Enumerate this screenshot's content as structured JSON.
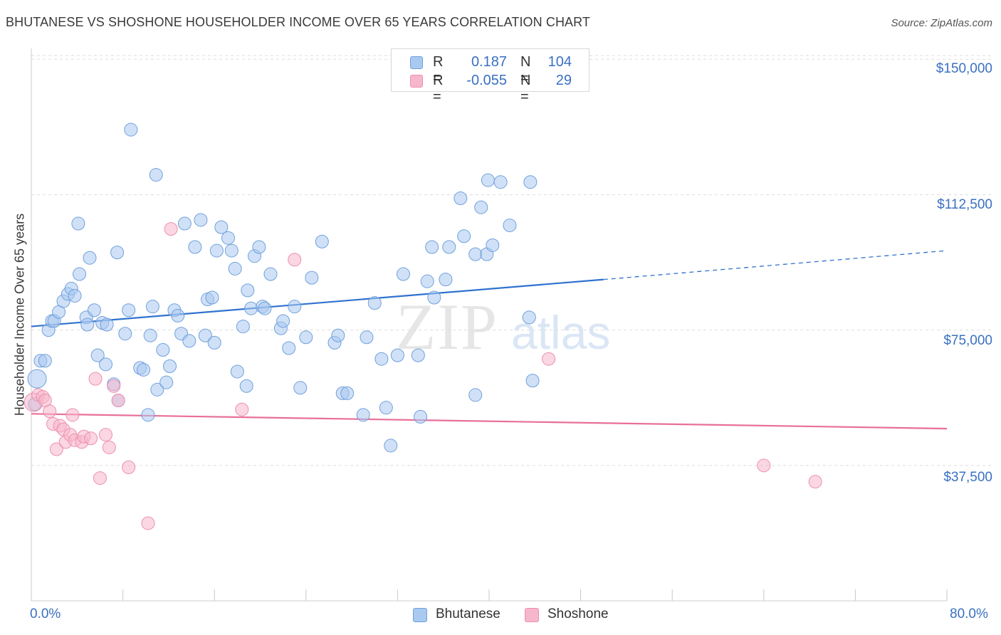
{
  "header": {
    "title": "BHUTANESE VS SHOSHONE HOUSEHOLDER INCOME OVER 65 YEARS CORRELATION CHART",
    "source": "Source: ZipAtlas.com"
  },
  "watermark": {
    "zip": "ZIP",
    "atlas": "atlas"
  },
  "legend_top": {
    "rows": [
      {
        "r_label": "R =",
        "r_value": "0.187",
        "n_label": "N =",
        "n_value": "104"
      },
      {
        "r_label": "R =",
        "r_value": "-0.055",
        "n_label": "N =",
        "n_value": "29"
      }
    ]
  },
  "legend_bottom": {
    "items": [
      "Bhutanese",
      "Shoshone"
    ]
  },
  "colors": {
    "blue_fill": "#a9c9f0",
    "blue_stroke": "#6fa0dc",
    "blue_line": "#2f72cf",
    "pink_fill": "#f6b6cb",
    "pink_stroke": "#ee8fae",
    "pink_line": "#e86f98",
    "tick_text": "#3a70c2",
    "grid": "#dddddd"
  },
  "chart_data": {
    "type": "scatter",
    "title": "BHUTANESE VS SHOSHONE HOUSEHOLDER INCOME OVER 65 YEARS CORRELATION CHART",
    "xlabel": "",
    "ylabel": "Householder Income Over 65 years",
    "xlim": [
      0,
      80
    ],
    "ylim": [
      0,
      154000
    ],
    "x_tick_labels": [
      "0.0%",
      "80.0%"
    ],
    "y_ticks": [
      37500,
      75000,
      112500,
      150000
    ],
    "y_tick_labels": [
      "$37,500",
      "$75,000",
      "$112,500",
      "$150,000"
    ],
    "grid": "horizontal-dashed",
    "legend_position": "top-center",
    "series": [
      {
        "name": "Bhutanese",
        "r": 0.187,
        "n": 104,
        "trend": {
          "x": [
            0,
            50
          ],
          "y": [
            76000,
            89000
          ],
          "dashed_extension_to_x": 80,
          "y_at_80": 97000
        },
        "points": [
          [
            0.5,
            61500,
            2
          ],
          [
            0.8,
            66500,
            1
          ],
          [
            1.2,
            66500,
            1
          ],
          [
            1.5,
            75000,
            1
          ],
          [
            1.8,
            77500,
            1
          ],
          [
            2.0,
            77500,
            1
          ],
          [
            2.4,
            80000,
            1
          ],
          [
            2.8,
            83000,
            1
          ],
          [
            3.2,
            85000,
            1
          ],
          [
            3.5,
            86500,
            1
          ],
          [
            3.8,
            84500,
            1
          ],
          [
            4.2,
            90500,
            1
          ],
          [
            4.8,
            78500,
            1
          ],
          [
            4.9,
            76500,
            1
          ],
          [
            5.1,
            95000,
            1
          ],
          [
            5.5,
            80500,
            1
          ],
          [
            6.2,
            77000,
            1
          ],
          [
            6.6,
            76500,
            1
          ],
          [
            5.8,
            68000,
            1
          ],
          [
            6.5,
            65500,
            1
          ],
          [
            7.2,
            60000,
            1
          ],
          [
            7.6,
            55500,
            1
          ],
          [
            7.5,
            96500,
            1
          ],
          [
            8.2,
            74000,
            1
          ],
          [
            8.5,
            80500,
            1
          ],
          [
            9.5,
            64500,
            1
          ],
          [
            9.8,
            64000,
            1
          ],
          [
            10.2,
            51500,
            1
          ],
          [
            10.4,
            73500,
            1
          ],
          [
            10.6,
            81500,
            1
          ],
          [
            11.0,
            58500,
            1
          ],
          [
            11.5,
            69500,
            1
          ],
          [
            11.8,
            60500,
            1
          ],
          [
            12.1,
            65000,
            1
          ],
          [
            12.5,
            80500,
            1
          ],
          [
            12.8,
            79000,
            1
          ],
          [
            13.1,
            74000,
            1
          ],
          [
            13.4,
            104500,
            1
          ],
          [
            13.8,
            72000,
            1
          ],
          [
            14.3,
            98000,
            1
          ],
          [
            14.8,
            105500,
            1
          ],
          [
            15.2,
            73500,
            1
          ],
          [
            15.4,
            83500,
            1
          ],
          [
            15.8,
            84000,
            1
          ],
          [
            16.0,
            71500,
            1
          ],
          [
            16.2,
            97000,
            1
          ],
          [
            16.6,
            103500,
            1
          ],
          [
            17.2,
            100500,
            1
          ],
          [
            17.5,
            97000,
            1
          ],
          [
            17.8,
            92000,
            1
          ],
          [
            18.0,
            63500,
            1
          ],
          [
            18.5,
            76000,
            1
          ],
          [
            18.8,
            59500,
            1
          ],
          [
            18.9,
            86000,
            1
          ],
          [
            19.2,
            81000,
            1
          ],
          [
            19.5,
            95500,
            1
          ],
          [
            19.9,
            98000,
            1
          ],
          [
            20.2,
            81500,
            1
          ],
          [
            20.4,
            81000,
            1
          ],
          [
            20.9,
            90500,
            1
          ],
          [
            21.8,
            75500,
            1
          ],
          [
            22.0,
            77500,
            1
          ],
          [
            22.5,
            70000,
            1
          ],
          [
            23.0,
            81500,
            1
          ],
          [
            23.5,
            59000,
            1
          ],
          [
            24.0,
            73000,
            1
          ],
          [
            24.5,
            89500,
            1
          ],
          [
            25.4,
            99500,
            1
          ],
          [
            26.5,
            71500,
            1
          ],
          [
            26.8,
            73500,
            1
          ],
          [
            27.2,
            57500,
            1
          ],
          [
            27.6,
            57500,
            1
          ],
          [
            29.0,
            51500,
            1
          ],
          [
            29.3,
            73000,
            1
          ],
          [
            30.0,
            82500,
            1
          ],
          [
            30.6,
            67000,
            1
          ],
          [
            31.0,
            53500,
            1
          ],
          [
            31.4,
            43000,
            1
          ],
          [
            32.0,
            68000,
            1
          ],
          [
            32.5,
            90500,
            1
          ],
          [
            33.8,
            68000,
            1
          ],
          [
            34.0,
            51000,
            1
          ],
          [
            34.6,
            88500,
            1
          ],
          [
            35.0,
            98000,
            1
          ],
          [
            35.2,
            84000,
            1
          ],
          [
            36.2,
            89000,
            1
          ],
          [
            36.5,
            98000,
            1
          ],
          [
            37.5,
            111500,
            1
          ],
          [
            37.8,
            101000,
            1
          ],
          [
            38.8,
            57000,
            1
          ],
          [
            38.8,
            96000,
            1
          ],
          [
            39.3,
            109000,
            1
          ],
          [
            39.8,
            96000,
            1
          ],
          [
            39.9,
            116500,
            1
          ],
          [
            40.3,
            98500,
            1
          ],
          [
            41.0,
            116000,
            1
          ],
          [
            41.8,
            104000,
            1
          ],
          [
            43.5,
            78500,
            1
          ],
          [
            43.8,
            61000,
            1
          ],
          [
            43.6,
            116000,
            1
          ],
          [
            8.7,
            130500,
            1
          ],
          [
            10.9,
            118000,
            1
          ],
          [
            4.1,
            104500,
            1
          ],
          [
            0.3,
            54500,
            1
          ]
        ]
      },
      {
        "name": "Shoshone",
        "r": -0.055,
        "n": 29,
        "trend": {
          "x": [
            0,
            80
          ],
          "y": [
            51800,
            47700
          ]
        },
        "points": [
          [
            0.2,
            55000,
            2
          ],
          [
            0.6,
            57000,
            1
          ],
          [
            1.0,
            56500,
            1
          ],
          [
            1.2,
            55500,
            1
          ],
          [
            1.6,
            52500,
            1
          ],
          [
            1.9,
            49000,
            1
          ],
          [
            2.2,
            42000,
            1
          ],
          [
            2.5,
            48500,
            1
          ],
          [
            2.8,
            47500,
            1
          ],
          [
            3.0,
            44000,
            1
          ],
          [
            3.4,
            46000,
            1
          ],
          [
            3.6,
            51500,
            1
          ],
          [
            3.8,
            44500,
            1
          ],
          [
            4.4,
            44000,
            1
          ],
          [
            4.6,
            45500,
            1
          ],
          [
            5.2,
            45000,
            1
          ],
          [
            5.6,
            61500,
            1
          ],
          [
            6.0,
            34000,
            1
          ],
          [
            6.5,
            46000,
            1
          ],
          [
            6.8,
            42500,
            1
          ],
          [
            7.2,
            59500,
            1
          ],
          [
            7.6,
            55500,
            1
          ],
          [
            8.5,
            37000,
            1
          ],
          [
            10.2,
            21500,
            1
          ],
          [
            12.2,
            103000,
            1
          ],
          [
            18.4,
            53000,
            1
          ],
          [
            23.0,
            94500,
            1
          ],
          [
            45.2,
            67000,
            1
          ],
          [
            64.0,
            37500,
            1
          ],
          [
            68.5,
            33000,
            1
          ]
        ]
      }
    ]
  }
}
